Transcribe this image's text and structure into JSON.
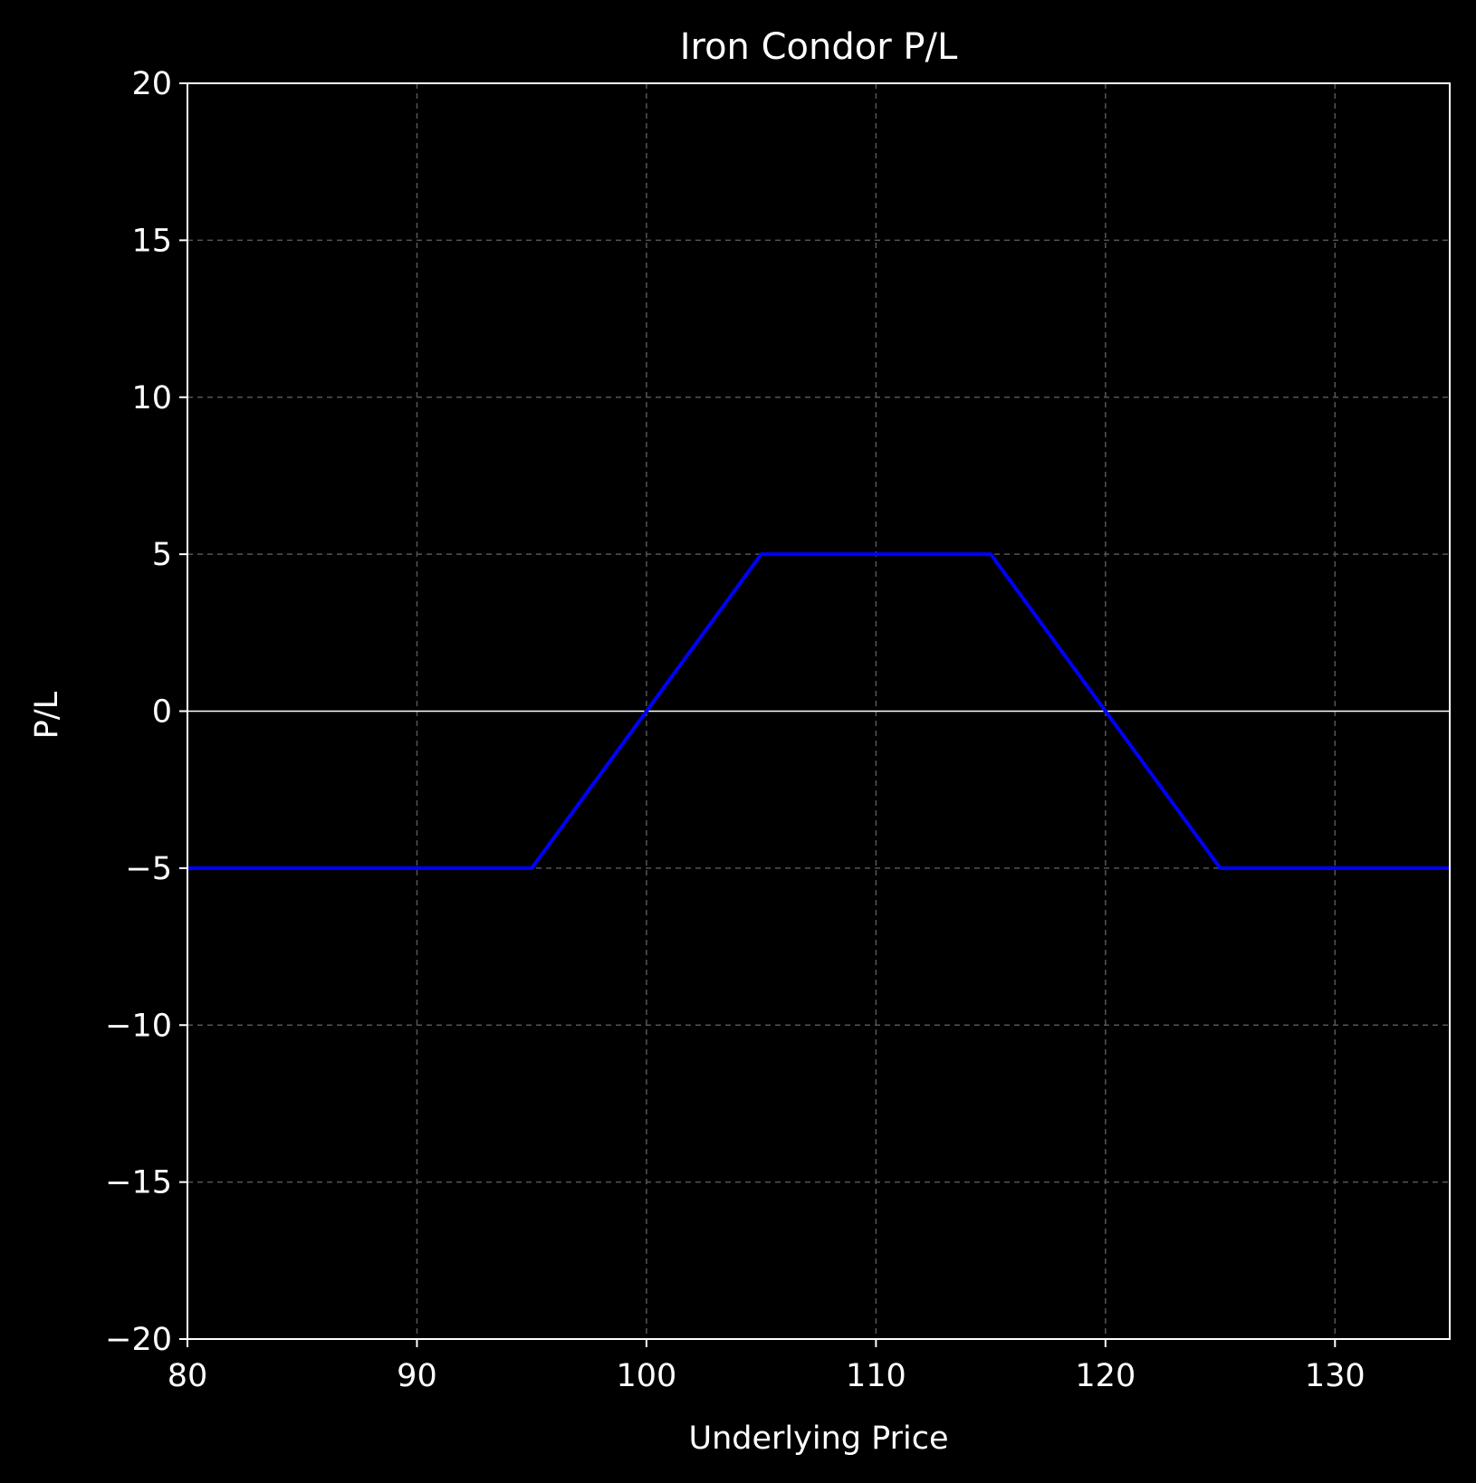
{
  "chart_data": {
    "type": "line",
    "title": "Iron Condor P/L",
    "xlabel": "Underlying Price",
    "ylabel": "P/L",
    "xlim": [
      80,
      135
    ],
    "ylim": [
      -20,
      20
    ],
    "xticks": [
      80,
      90,
      100,
      110,
      120,
      130
    ],
    "xtick_labels": [
      "80",
      "90",
      "100",
      "110",
      "120",
      "130"
    ],
    "yticks": [
      -20,
      -15,
      -10,
      -5,
      0,
      5,
      10,
      15,
      20
    ],
    "ytick_labels": [
      "−20",
      "−15",
      "−10",
      "−5",
      "0",
      "5",
      "10",
      "15",
      "20"
    ],
    "grid": true,
    "zero_line": true,
    "series": [
      {
        "color": "#0000ff",
        "x": [
          80,
          95,
          105,
          115,
          125,
          135
        ],
        "y": [
          -5,
          -5,
          5,
          5,
          -5,
          -5
        ]
      }
    ],
    "colors": {
      "background": "#000000",
      "foreground": "#ffffff",
      "grid": "#555555"
    }
  }
}
